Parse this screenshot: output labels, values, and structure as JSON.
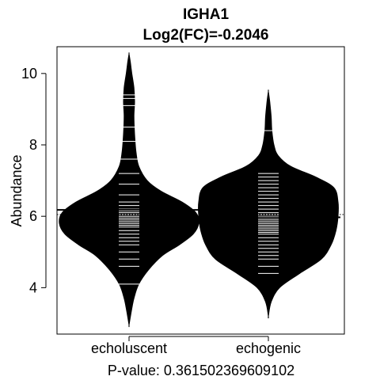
{
  "chart_data": {
    "type": "beanplot",
    "title": "IGHA1",
    "subtitle": "Log2(FC)=-0.2046",
    "xlabel": "",
    "ylabel": "Abundance",
    "footer": "P-value: 0.361502369609102",
    "categories": [
      "echoluscent",
      "echogenic"
    ],
    "yticks": [
      4,
      6,
      8,
      10
    ],
    "ylim": [
      2.7,
      10.75
    ],
    "overall_mean": 6.05,
    "groups": [
      {
        "name": "echoluscent",
        "mean": 6.18,
        "min": 2.95,
        "max": 10.55,
        "density": [
          [
            2.95,
            0.0
          ],
          [
            3.3,
            0.03
          ],
          [
            3.7,
            0.07
          ],
          [
            4.1,
            0.14
          ],
          [
            4.5,
            0.28
          ],
          [
            4.9,
            0.48
          ],
          [
            5.2,
            0.72
          ],
          [
            5.5,
            0.92
          ],
          [
            5.8,
            1.0
          ],
          [
            6.1,
            0.96
          ],
          [
            6.4,
            0.76
          ],
          [
            6.7,
            0.46
          ],
          [
            7.0,
            0.26
          ],
          [
            7.4,
            0.14
          ],
          [
            7.8,
            0.1
          ],
          [
            8.3,
            0.08
          ],
          [
            8.8,
            0.07
          ],
          [
            9.2,
            0.08
          ],
          [
            9.6,
            0.07
          ],
          [
            10.0,
            0.04
          ],
          [
            10.3,
            0.02
          ],
          [
            10.55,
            0.0
          ]
        ],
        "samples": [
          4.1,
          4.6,
          4.8,
          5.0,
          5.2,
          5.3,
          5.4,
          5.5,
          5.6,
          5.7,
          5.75,
          5.8,
          5.85,
          5.9,
          5.95,
          6.0,
          6.05,
          6.1,
          6.15,
          6.2,
          6.3,
          6.4,
          6.6,
          6.9,
          7.2,
          7.6,
          8.1,
          8.5,
          9.1,
          9.3,
          9.4
        ]
      },
      {
        "name": "echogenic",
        "mean": 5.97,
        "min": 3.2,
        "max": 9.5,
        "density": [
          [
            3.2,
            0.0
          ],
          [
            3.6,
            0.04
          ],
          [
            4.0,
            0.16
          ],
          [
            4.4,
            0.45
          ],
          [
            4.8,
            0.76
          ],
          [
            5.2,
            0.9
          ],
          [
            5.6,
            0.97
          ],
          [
            6.0,
            1.0
          ],
          [
            6.4,
            1.0
          ],
          [
            6.8,
            0.94
          ],
          [
            7.1,
            0.68
          ],
          [
            7.4,
            0.32
          ],
          [
            7.7,
            0.14
          ],
          [
            8.0,
            0.08
          ],
          [
            8.4,
            0.05
          ],
          [
            8.8,
            0.04
          ],
          [
            9.2,
            0.02
          ],
          [
            9.5,
            0.0
          ]
        ],
        "samples": [
          4.4,
          4.6,
          4.8,
          4.9,
          5.0,
          5.1,
          5.2,
          5.3,
          5.4,
          5.5,
          5.55,
          5.6,
          5.65,
          5.7,
          5.75,
          5.8,
          5.85,
          5.9,
          5.95,
          6.0,
          6.05,
          6.1,
          6.2,
          6.3,
          6.4,
          6.5,
          6.6,
          6.7,
          6.8,
          6.9,
          7.0,
          7.1,
          7.2,
          8.4
        ]
      }
    ]
  }
}
